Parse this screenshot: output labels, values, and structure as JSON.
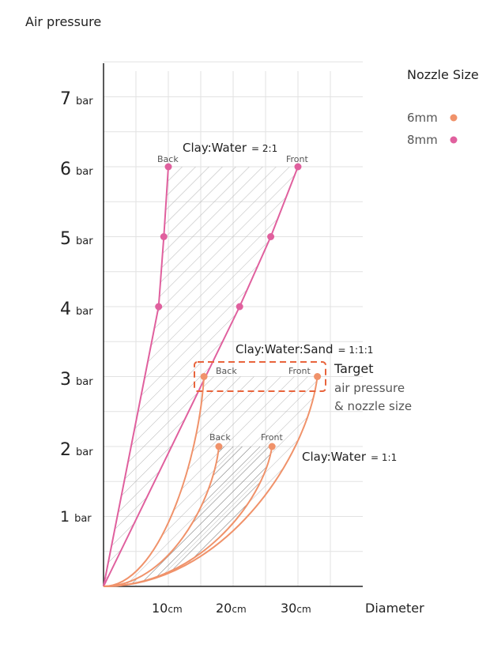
{
  "chart_data": {
    "type": "line",
    "title": "",
    "ylabel": "Air pressure",
    "xlabel": "Diameter",
    "x_ticks": [
      {
        "value": 10,
        "label": "10",
        "unit": "cm"
      },
      {
        "value": 20,
        "label": "20",
        "unit": "cm"
      },
      {
        "value": 30,
        "label": "30",
        "unit": "cm"
      }
    ],
    "y_ticks": [
      {
        "value": 1,
        "label": "1",
        "unit": "bar"
      },
      {
        "value": 2,
        "label": "2",
        "unit": "bar"
      },
      {
        "value": 3,
        "label": "3",
        "unit": "bar"
      },
      {
        "value": 4,
        "label": "4",
        "unit": "bar"
      },
      {
        "value": 5,
        "label": "5",
        "unit": "bar"
      },
      {
        "value": 6,
        "label": "6",
        "unit": "bar"
      },
      {
        "value": 7,
        "label": "7",
        "unit": "bar"
      }
    ],
    "xlim": [
      0,
      40
    ],
    "ylim": [
      0,
      7.5
    ],
    "grid": true,
    "legend": {
      "title": "Nozzle Size",
      "placement": "top-right",
      "entries": [
        {
          "label": "6mm",
          "color": "#f0926a"
        },
        {
          "label": "8mm",
          "color": "#e0609e"
        }
      ]
    },
    "series": [
      {
        "name": "8mm Clay:Water = 2:1 Back",
        "nozzle": "8mm",
        "color": "#e0609e",
        "curve": "straight",
        "points": [
          [
            0,
            0
          ],
          [
            8.5,
            4
          ],
          [
            9.3,
            5
          ],
          [
            10,
            6
          ]
        ],
        "markers": [
          [
            8.5,
            4
          ],
          [
            9.3,
            5
          ],
          [
            10,
            6
          ]
        ]
      },
      {
        "name": "8mm Clay:Water = 2:1 Front",
        "nozzle": "8mm",
        "color": "#e0609e",
        "curve": "straight",
        "points": [
          [
            0,
            0
          ],
          [
            21,
            4
          ],
          [
            25.8,
            5
          ],
          [
            30,
            6
          ]
        ],
        "markers": [
          [
            21,
            4
          ],
          [
            25.8,
            5
          ],
          [
            30,
            6
          ]
        ]
      },
      {
        "name": "6mm Clay:Water:Sand = 1:1:1 Back",
        "nozzle": "6mm",
        "color": "#f0926a",
        "curve": "smooth",
        "points": [
          [
            0,
            0
          ],
          [
            15.5,
            3
          ]
        ],
        "markers": [
          [
            15.5,
            3
          ]
        ]
      },
      {
        "name": "6mm Clay:Water:Sand = 1:1:1 Front",
        "nozzle": "6mm",
        "color": "#f0926a",
        "curve": "smooth",
        "points": [
          [
            0,
            0
          ],
          [
            33,
            3
          ]
        ],
        "markers": [
          [
            33,
            3
          ]
        ]
      },
      {
        "name": "6mm Clay:Water = 1:1 Back",
        "nozzle": "6mm",
        "color": "#f0926a",
        "curve": "smooth",
        "points": [
          [
            0,
            0
          ],
          [
            17.8,
            2
          ]
        ],
        "markers": [
          [
            17.8,
            2
          ]
        ]
      },
      {
        "name": "6mm Clay:Water = 1:1 Front",
        "nozzle": "6mm",
        "color": "#f0926a",
        "curve": "smooth",
        "points": [
          [
            0,
            0
          ],
          [
            26,
            2
          ]
        ],
        "markers": [
          [
            26,
            2
          ]
        ]
      }
    ],
    "annotations": {
      "clay_water_2_1": {
        "label": "Clay:Water",
        "ratio": "= 2:1"
      },
      "clay_water_sand": {
        "label": "Clay:Water:Sand",
        "ratio": "= 1:1:1"
      },
      "clay_water_1_1": {
        "label": "Clay:Water",
        "ratio": "= 1:1"
      },
      "back": "Back",
      "front": "Front",
      "target": {
        "title": "Target",
        "line1": "air pressure",
        "line2": "& nozzle size",
        "color": "#e8643c"
      }
    }
  }
}
